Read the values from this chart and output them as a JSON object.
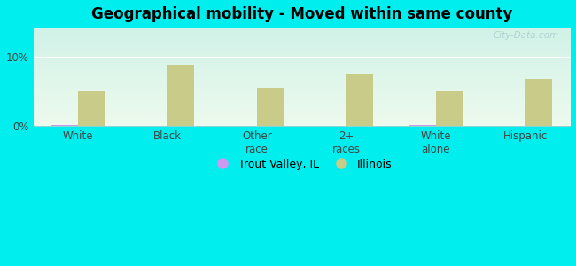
{
  "title": "Geographical mobility - Moved within same county",
  "categories": [
    "White",
    "Black",
    "Other\nrace",
    "2+\nraces",
    "White\nalone",
    "Hispanic"
  ],
  "trout_valley_values": [
    0.15,
    0.0,
    0.0,
    0.0,
    0.15,
    0.0
  ],
  "illinois_values": [
    5.0,
    8.8,
    5.5,
    7.5,
    5.0,
    6.8
  ],
  "trout_valley_color": "#cc99ee",
  "illinois_color": "#c8cc88",
  "background_color": "#00eeee",
  "plot_bg_topleft": "#d0eee8",
  "plot_bg_topright": "#d0eee8",
  "plot_bg_bottom": "#e8f4e8",
  "ylim": [
    0,
    14
  ],
  "yticks": [
    0,
    10
  ],
  "ytick_labels": [
    "0%",
    "10%"
  ],
  "bar_width": 0.3,
  "legend_trout": "Trout Valley, IL",
  "legend_illinois": "Illinois",
  "watermark": "City-Data.com"
}
